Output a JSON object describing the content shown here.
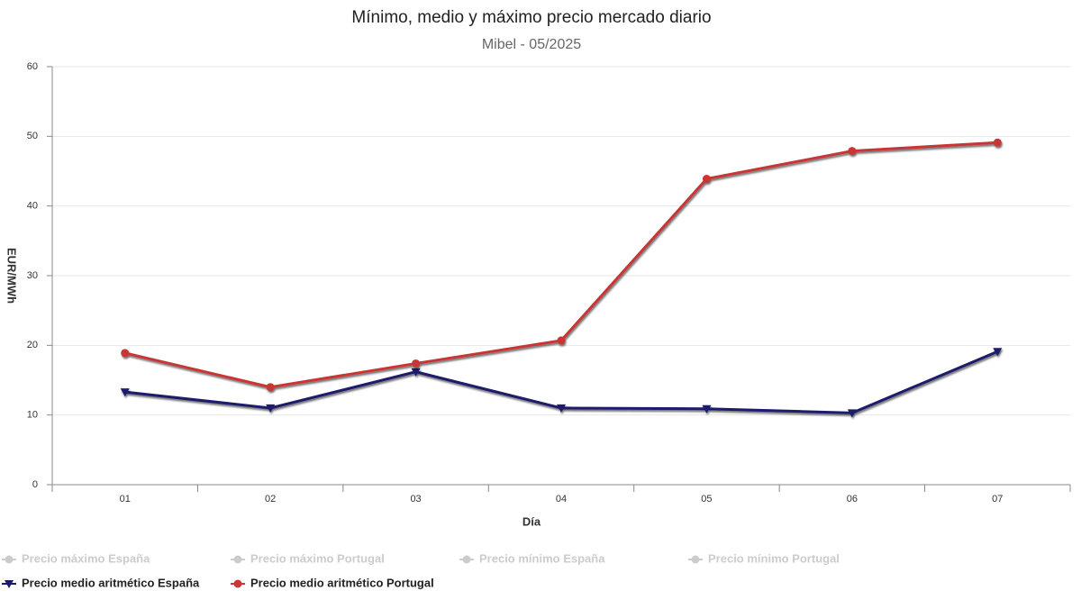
{
  "chart_data": {
    "type": "line",
    "title": "Mínimo, medio y máximo precio mercado diario",
    "subtitle": "Mibel - 05/2025",
    "x_label": "Día",
    "y_label": "EUR/MWh",
    "categories": [
      "01",
      "02",
      "03",
      "04",
      "05",
      "06",
      "07"
    ],
    "series": [
      {
        "name": "Precio medio aritmético España",
        "color": "#1b1b6b",
        "marker": "triangle-down",
        "values": [
          13.3,
          11.0,
          16.2,
          11.0,
          10.9,
          10.3,
          19.1
        ]
      },
      {
        "name": "Precio medio aritmético Portugal",
        "color": "#c93636",
        "marker": "circle",
        "values": [
          18.9,
          14.0,
          17.4,
          20.7,
          43.9,
          47.9,
          49.1
        ]
      }
    ],
    "hidden_legend": [
      "Precio máximo España",
      "Precio máximo Portugal",
      "Precio mínimo España",
      "Precio mínimo Portugal"
    ],
    "ylim": [
      0,
      60
    ],
    "yticks": [
      0,
      10,
      20,
      30,
      40,
      50,
      60
    ],
    "grid": true
  }
}
